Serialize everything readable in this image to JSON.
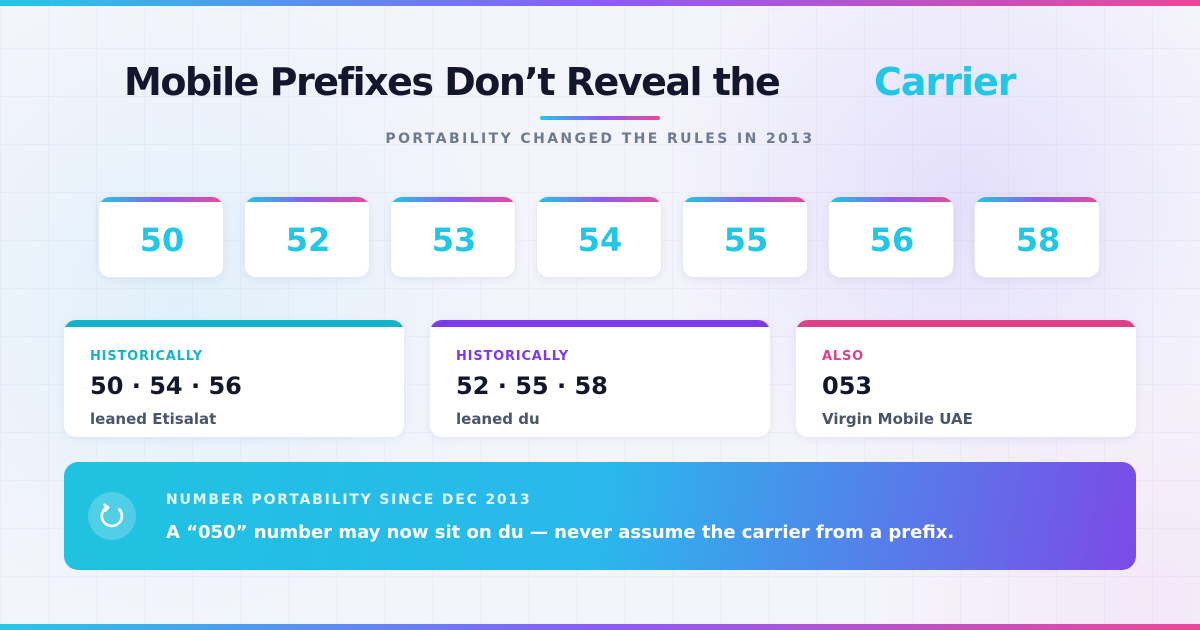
{
  "header": {
    "title": "Mobile Prefixes Don’t Reveal the",
    "title_accent": "Carrier",
    "subtitle": "PORTABILITY CHANGED THE RULES IN 2013"
  },
  "prefixes": [
    "50",
    "52",
    "53",
    "54",
    "55",
    "56",
    "58"
  ],
  "cards": [
    {
      "label": "HISTORICALLY",
      "value": "50 · 54 · 56",
      "desc": "leaned Etisalat",
      "color": "#14b4c8"
    },
    {
      "label": "HISTORICALLY",
      "value": "52 · 55 · 58",
      "desc": "leaned du",
      "color": "#7c3aed"
    },
    {
      "label": "ALSO",
      "value": "053",
      "desc": "Virgin Mobile UAE",
      "color": "#e0408a"
    }
  ],
  "banner": {
    "heading": "NUMBER PORTABILITY SINCE DEC 2013",
    "text": "A “050” number may now sit on du — never assume the carrier from a prefix.",
    "icon": "refresh-icon"
  },
  "colors": {
    "accent": "#22c7e6",
    "purple": "#7c3aed",
    "pink": "#e0408a",
    "text_dark": "#14162e"
  }
}
